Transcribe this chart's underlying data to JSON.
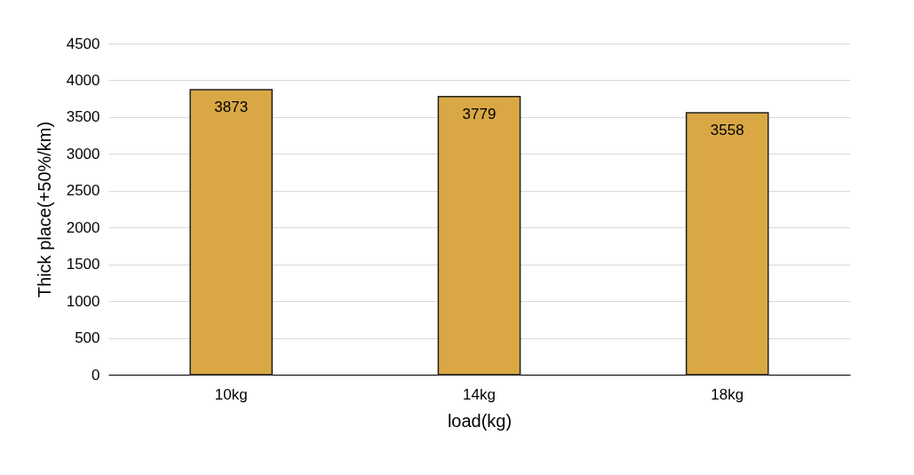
{
  "chart_data": {
    "type": "bar",
    "xlabel": "load(kg)",
    "ylabel": "Thick place(+50%/km)",
    "categories": [
      "10kg",
      "14kg",
      "18kg"
    ],
    "values": [
      3873,
      3779,
      3558
    ],
    "color": "#d9a845",
    "ylim": [
      0,
      4500
    ],
    "yticks": [
      0,
      500,
      1000,
      1500,
      2000,
      2500,
      3000,
      3500,
      4000,
      4500
    ],
    "grid": "y",
    "data_labels": true
  }
}
